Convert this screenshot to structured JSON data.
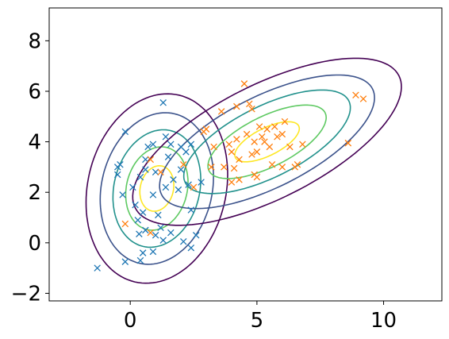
{
  "chart_data": {
    "type": "scatter",
    "title": "",
    "xlabel": "",
    "ylabel": "",
    "xlim": [
      -3.2,
      12.3
    ],
    "ylim": [
      -2.3,
      9.3
    ],
    "grid": false,
    "x_ticks": [
      0,
      5,
      10
    ],
    "x_tick_labels": [
      "0",
      "5",
      "10"
    ],
    "y_ticks": [
      -2,
      0,
      2,
      4,
      6,
      8
    ],
    "y_tick_labels": [
      "−2",
      "0",
      "2",
      "4",
      "6",
      "8"
    ],
    "series": [
      {
        "marker": "x",
        "color": "#1f77b4",
        "points": [
          [
            -1.3,
            -1.0
          ],
          [
            -0.2,
            -0.75
          ],
          [
            0.4,
            -0.7
          ],
          [
            0.5,
            -0.4
          ],
          [
            0.9,
            -0.35
          ],
          [
            1.3,
            0.1
          ],
          [
            2.1,
            0.05
          ],
          [
            2.4,
            -0.2
          ],
          [
            0.35,
            0.35
          ],
          [
            0.6,
            0.5
          ],
          [
            1.0,
            0.3
          ],
          [
            1.6,
            0.4
          ],
          [
            2.6,
            0.3
          ],
          [
            0.3,
            0.9
          ],
          [
            0.5,
            1.2
          ],
          [
            1.1,
            1.1
          ],
          [
            2.4,
            1.3
          ],
          [
            -0.3,
            1.9
          ],
          [
            0.1,
            2.2
          ],
          [
            0.9,
            1.9
          ],
          [
            1.4,
            2.2
          ],
          [
            1.9,
            2.1
          ],
          [
            2.3,
            2.3
          ],
          [
            0.4,
            2.6
          ],
          [
            0.6,
            2.9
          ],
          [
            1.0,
            2.8
          ],
          [
            1.7,
            2.5
          ],
          [
            2.0,
            2.9
          ],
          [
            -0.5,
            3.0
          ],
          [
            -0.4,
            3.1
          ],
          [
            0.6,
            3.3
          ],
          [
            1.5,
            3.4
          ],
          [
            2.2,
            3.6
          ],
          [
            0.7,
            3.8
          ],
          [
            0.9,
            3.9
          ],
          [
            1.6,
            3.9
          ],
          [
            2.0,
            3.8
          ],
          [
            2.4,
            3.9
          ],
          [
            1.4,
            4.2
          ],
          [
            -0.2,
            4.4
          ],
          [
            1.3,
            5.55
          ],
          [
            -0.5,
            2.7
          ],
          [
            0.2,
            1.5
          ],
          [
            1.2,
            0.6
          ],
          [
            2.8,
            2.4
          ]
        ]
      },
      {
        "marker": "x",
        "color": "#ff7f0e",
        "points": [
          [
            -0.2,
            0.75
          ],
          [
            0.8,
            0.4
          ],
          [
            0.8,
            3.3
          ],
          [
            1.2,
            2.8
          ],
          [
            2.1,
            3.1
          ],
          [
            2.5,
            2.2
          ],
          [
            2.9,
            4.4
          ],
          [
            3.0,
            4.5
          ],
          [
            3.3,
            3.8
          ],
          [
            3.2,
            3.0
          ],
          [
            3.6,
            5.2
          ],
          [
            3.9,
            3.9
          ],
          [
            4.0,
            3.6
          ],
          [
            4.0,
            2.4
          ],
          [
            4.2,
            4.1
          ],
          [
            4.3,
            3.3
          ],
          [
            4.2,
            5.4
          ],
          [
            4.3,
            2.5
          ],
          [
            4.5,
            6.3
          ],
          [
            4.7,
            5.5
          ],
          [
            4.8,
            5.3
          ],
          [
            4.9,
            4.0
          ],
          [
            4.8,
            3.5
          ],
          [
            5.0,
            3.6
          ],
          [
            5.0,
            2.6
          ],
          [
            5.1,
            4.6
          ],
          [
            5.2,
            4.2
          ],
          [
            5.4,
            4.5
          ],
          [
            5.5,
            3.8
          ],
          [
            5.6,
            3.1
          ],
          [
            5.7,
            4.6
          ],
          [
            5.8,
            4.2
          ],
          [
            6.0,
            4.3
          ],
          [
            6.0,
            3.0
          ],
          [
            6.1,
            4.8
          ],
          [
            6.3,
            3.8
          ],
          [
            6.6,
            3.1
          ],
          [
            6.8,
            3.9
          ],
          [
            6.5,
            3.0
          ],
          [
            4.9,
            2.7
          ],
          [
            8.6,
            3.95
          ],
          [
            8.9,
            5.85
          ],
          [
            9.2,
            5.7
          ],
          [
            4.1,
            2.95
          ],
          [
            4.6,
            4.3
          ],
          [
            5.3,
            4.0
          ],
          [
            3.7,
            3.0
          ]
        ]
      }
    ],
    "contours": {
      "colors": [
        "#440154",
        "#3b528b",
        "#21918c",
        "#5ec962",
        "#fde725"
      ],
      "levels_count": 5,
      "components": [
        {
          "mean": [
            1.05,
            2.15
          ],
          "cov": [
            [
              1.25,
              0.25
            ],
            [
              0.25,
              2.25
            ]
          ]
        },
        {
          "mean": [
            5.4,
            4.0
          ],
          "cov": [
            [
              4.5,
              1.85
            ],
            [
              1.85,
              1.75
            ]
          ]
        }
      ]
    }
  }
}
